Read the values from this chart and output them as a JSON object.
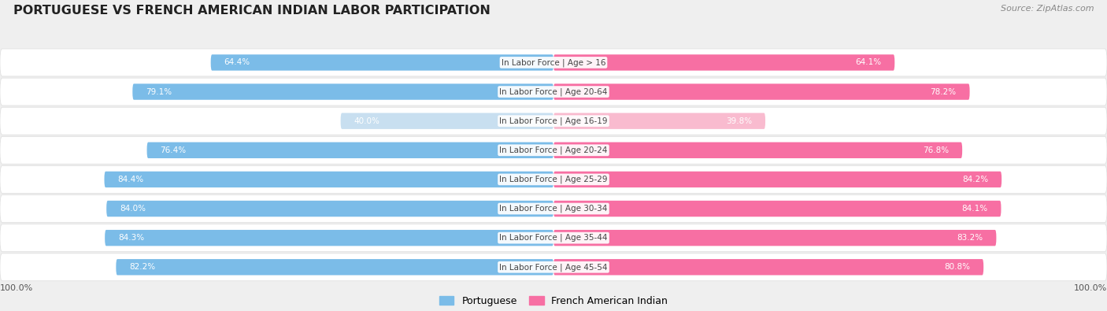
{
  "title": "PORTUGUESE VS FRENCH AMERICAN INDIAN LABOR PARTICIPATION",
  "source": "Source: ZipAtlas.com",
  "categories": [
    "In Labor Force | Age > 16",
    "In Labor Force | Age 20-64",
    "In Labor Force | Age 16-19",
    "In Labor Force | Age 20-24",
    "In Labor Force | Age 25-29",
    "In Labor Force | Age 30-34",
    "In Labor Force | Age 35-44",
    "In Labor Force | Age 45-54"
  ],
  "portuguese_values": [
    64.4,
    79.1,
    40.0,
    76.4,
    84.4,
    84.0,
    84.3,
    82.2
  ],
  "french_values": [
    64.1,
    78.2,
    39.8,
    76.8,
    84.2,
    84.1,
    83.2,
    80.8
  ],
  "portuguese_color": "#7BBCE8",
  "portuguese_light_color": "#C8DFF0",
  "french_color": "#F76FA3",
  "french_light_color": "#F9BBCF",
  "bg_color": "#EFEFEF",
  "max_value": 100.0,
  "title_fontsize": 11.5,
  "label_fontsize": 7.5,
  "value_fontsize": 7.5
}
